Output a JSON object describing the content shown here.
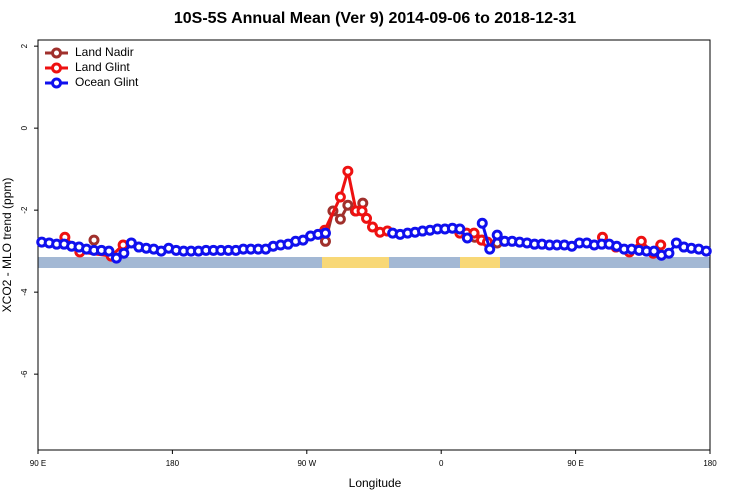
{
  "chart_data": {
    "type": "line",
    "title": "10S-5S Annual Mean (Ver 9)   2014-09-06 to 2018-12-31",
    "x_label": "Longitude",
    "y_label": "XCO2 - MLO trend (ppm)",
    "xlim": [
      90,
      540
    ],
    "xticks": [
      {
        "value": 90,
        "label": "90 E"
      },
      180,
      {
        "value": 270,
        "label": "90 W"
      },
      {
        "value": 360,
        "label": "0"
      },
      {
        "value": 450,
        "label": "90 E"
      },
      {
        "value": 540,
        "label": "180"
      }
    ],
    "ylim": [
      -7.85,
      2.15
    ],
    "yticks": [
      2,
      0,
      -2,
      -4,
      -6
    ],
    "legend": "top-left",
    "series": [
      {
        "name": "Land Nadir",
        "color": "#a0302c",
        "x": [
          127.5,
          200,
          282.5,
          287.5,
          292.5,
          297.5,
          302.5,
          307.5,
          340,
          382.5,
          387.5,
          397.5
        ],
        "values": [
          -2.73,
          null,
          -2.76,
          -2.02,
          -2.22,
          -1.88,
          -2.02,
          -1.83,
          null,
          -2.66,
          -2.73,
          -2.8
        ]
      },
      {
        "name": "Land Glint",
        "color": "#ee1111",
        "x": [
          108,
          118,
          139,
          147,
          200,
          282,
          292.5,
          297.5,
          303,
          307,
          310,
          314,
          319,
          324,
          350,
          372.5,
          377,
          382,
          387,
          391,
          430,
          468,
          477,
          486,
          494,
          502,
          507
        ],
        "values": [
          -2.66,
          -3.02,
          -3.12,
          -2.85,
          null,
          -2.49,
          -1.68,
          -1.05,
          -2.02,
          -2.02,
          -2.2,
          -2.41,
          -2.54,
          -2.51,
          null,
          -2.56,
          -2.56,
          -2.56,
          -2.73,
          -2.78,
          null,
          -2.66,
          -2.9,
          -3.02,
          -2.76,
          -3.05,
          -2.85
        ]
      },
      {
        "name": "Ocean Glint",
        "color": "#1010ee",
        "x": [
          92.5,
          97.5,
          102.5,
          107.5,
          112.5,
          117.5,
          122.5,
          127.5,
          132.5,
          137.5,
          142.5,
          147.5,
          152.5,
          157.5,
          162.5,
          167.5,
          172.5,
          177.5,
          182.5,
          187.5,
          192.5,
          197.5,
          202.5,
          207.5,
          212.5,
          217.5,
          222.5,
          227.5,
          232.5,
          237.5,
          242.5,
          247.5,
          252.5,
          257.5,
          262.5,
          267.5,
          272.5,
          277.5,
          282.5,
          287.5,
          292.5,
          297.5,
          302.5,
          307.5,
          312.5,
          317.5,
          322.5,
          327.5,
          332.5,
          337.5,
          342.5,
          347.5,
          352.5,
          357.5,
          362.5,
          367.5,
          372.5,
          377.5,
          382.5,
          387.5,
          392.5,
          397.5,
          402.5,
          407.5,
          412.5,
          417.5,
          422.5,
          427.5,
          432.5,
          437.5,
          442.5,
          447.5,
          452.5,
          457.5,
          462.5,
          467.5,
          472.5,
          477.5,
          482.5,
          487.5,
          492.5,
          497.5,
          502.5,
          507.5,
          512.5,
          517.5,
          522.5,
          527.5,
          532.5,
          537.5
        ],
        "values": [
          -2.78,
          -2.8,
          -2.83,
          -2.83,
          -2.88,
          -2.9,
          -2.95,
          -2.98,
          -2.98,
          -3.0,
          -3.17,
          -3.05,
          -2.8,
          -2.9,
          -2.93,
          -2.95,
          -3.0,
          -2.93,
          -2.98,
          -3.0,
          -3.0,
          -3.0,
          -2.98,
          -2.98,
          -2.98,
          -2.98,
          -2.98,
          -2.95,
          -2.95,
          -2.95,
          -2.95,
          -2.88,
          -2.85,
          -2.83,
          -2.76,
          -2.73,
          -2.63,
          -2.59,
          -2.56,
          null,
          null,
          null,
          null,
          null,
          null,
          null,
          null,
          -2.56,
          -2.59,
          -2.56,
          -2.54,
          -2.51,
          -2.49,
          -2.46,
          -2.46,
          -2.44,
          -2.46,
          -2.68,
          null,
          -2.32,
          -2.95,
          -2.61,
          -2.76,
          -2.76,
          -2.78,
          -2.8,
          -2.83,
          -2.83,
          -2.85,
          -2.85,
          -2.85,
          -2.88,
          -2.8,
          -2.8,
          -2.85,
          -2.83,
          -2.83,
          -2.88,
          -2.95,
          -2.95,
          -2.98,
          -3.0,
          -3.0,
          -3.1,
          -3.05,
          -2.8,
          -2.9,
          -2.93,
          -2.95,
          -3.0
        ]
      }
    ]
  }
}
